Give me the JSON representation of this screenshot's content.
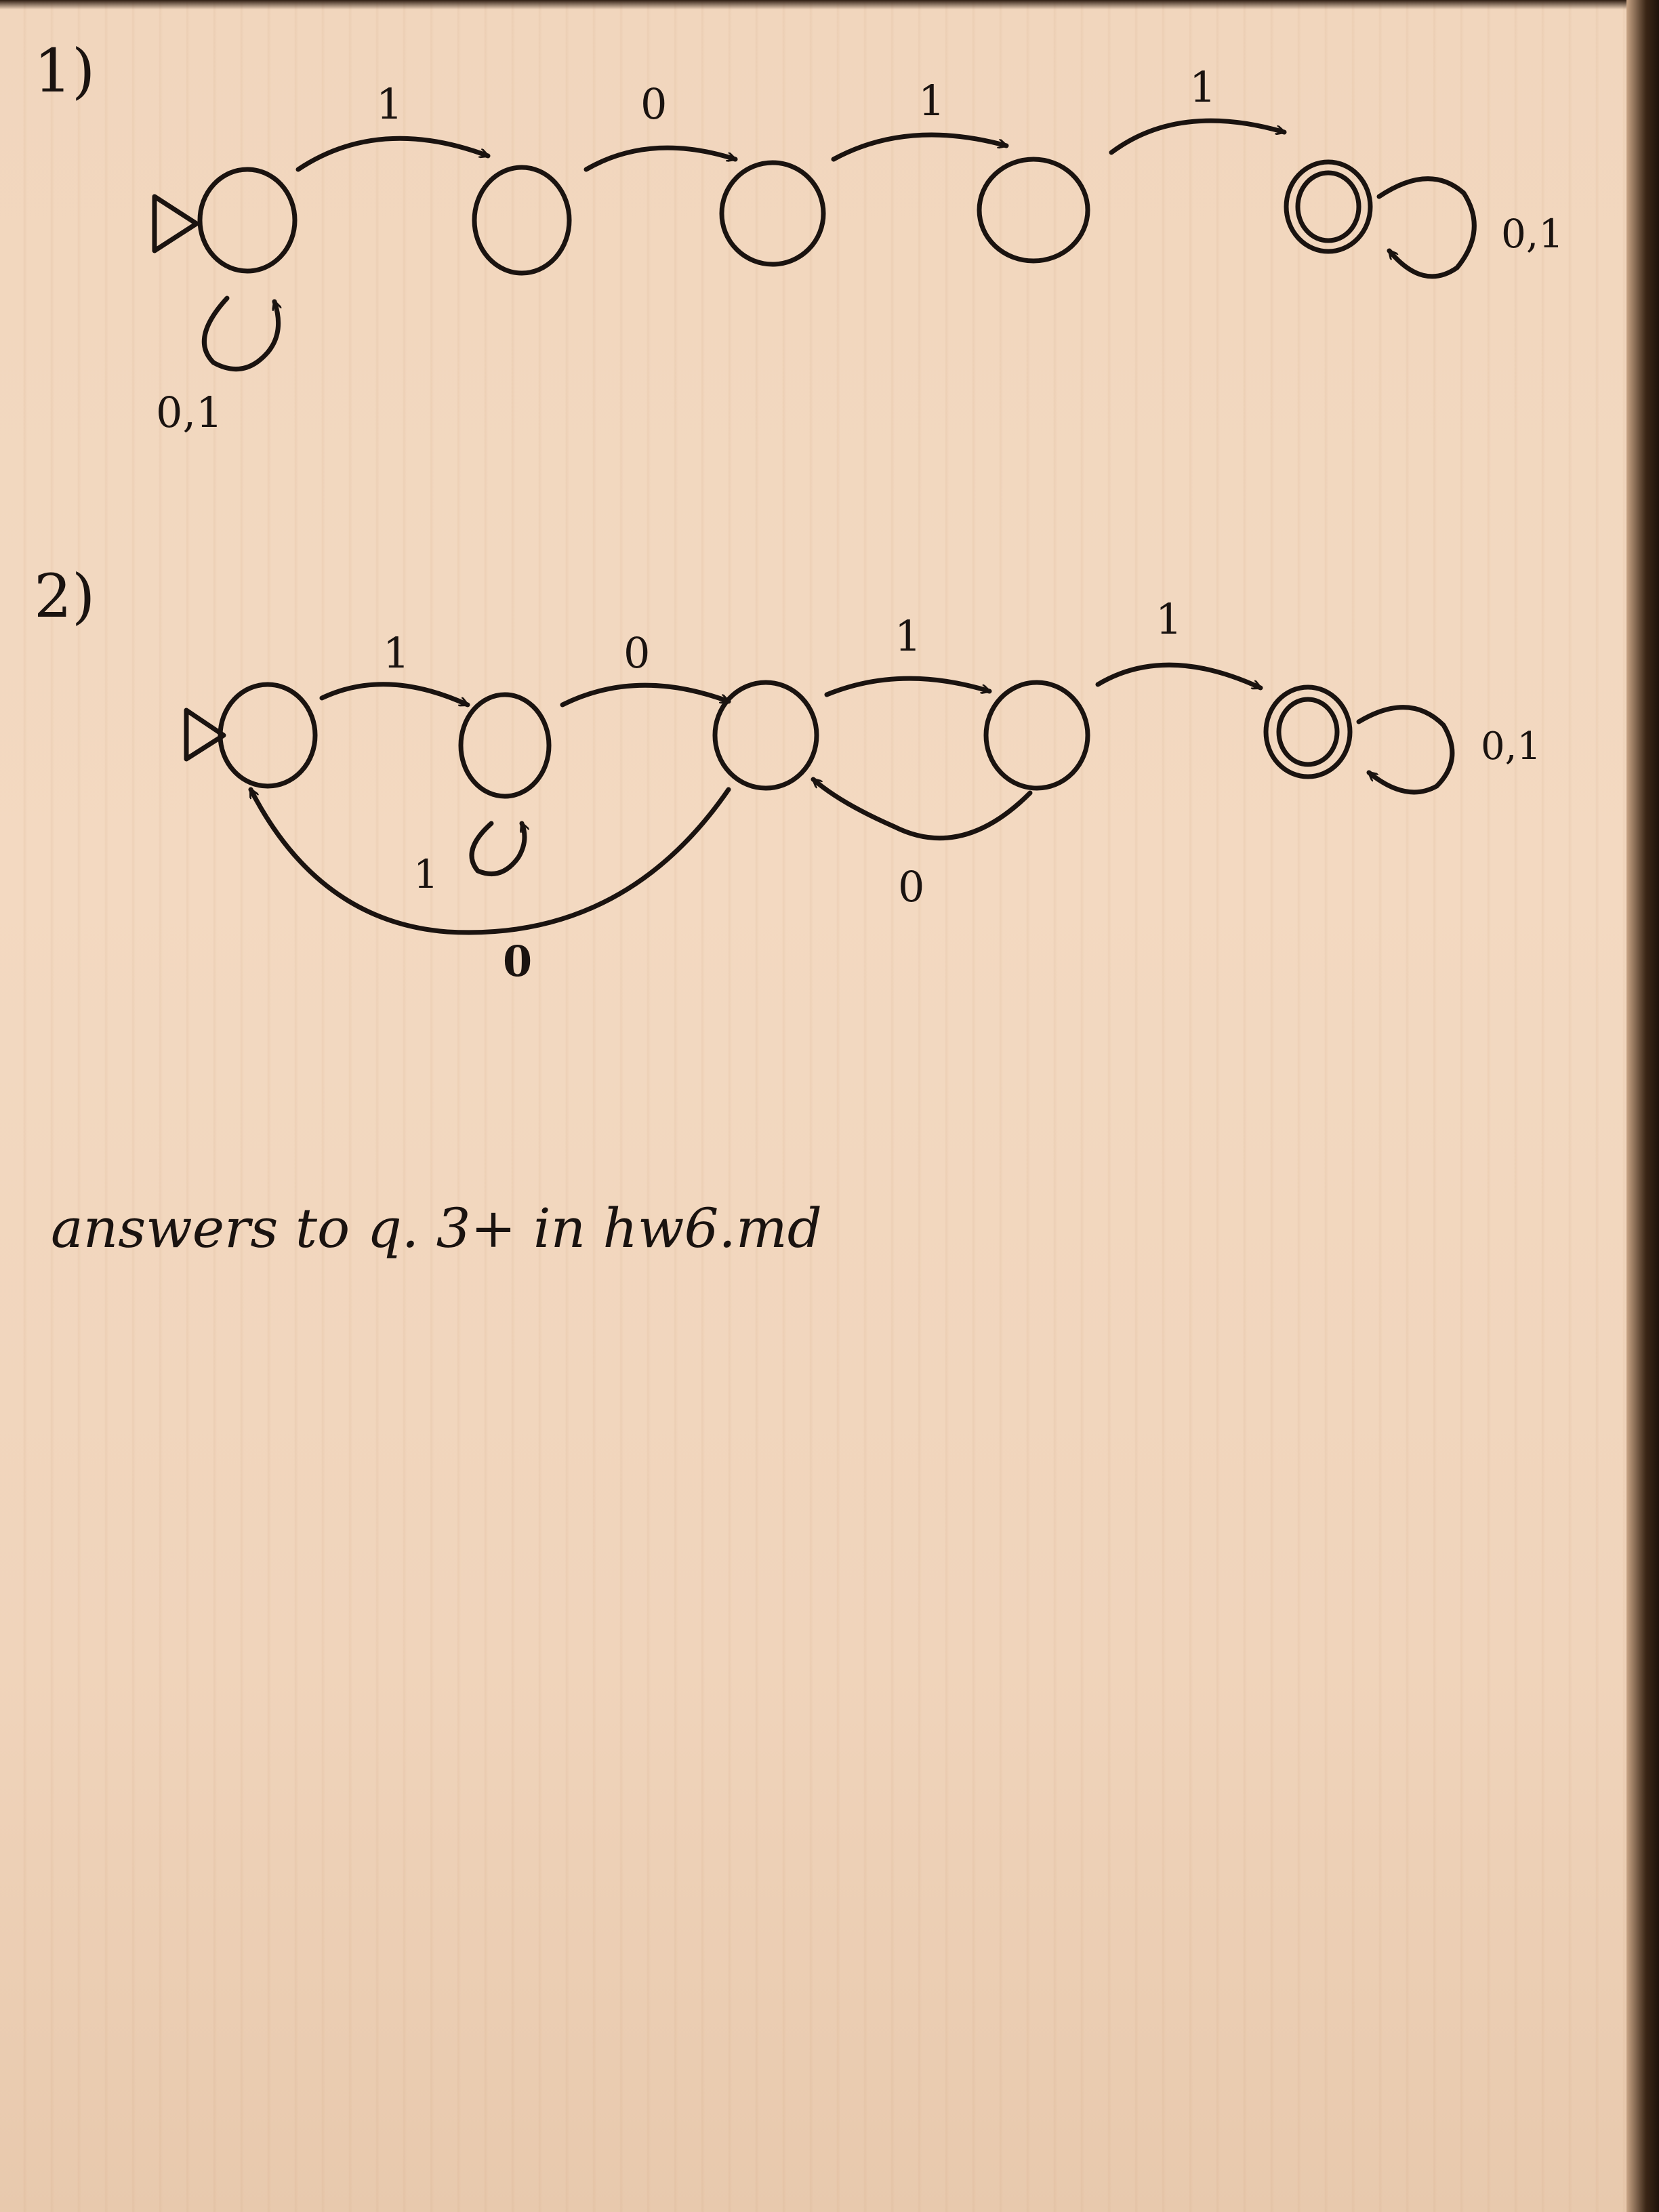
{
  "problems": [
    {
      "label": "1)",
      "edge_labels": [
        "1",
        "0",
        "1",
        "1"
      ],
      "start_loop_label": "0,1",
      "final_loop_label": "0,1"
    },
    {
      "label": "2)",
      "edge_labels": [
        "1",
        "0",
        "1",
        "1"
      ],
      "q1_loop_label": "1",
      "back_q3_q2_label": "0",
      "back_q2_q0_label": "0",
      "final_loop_label": "0,1"
    }
  ],
  "footer_note": "answers to q. 3+ in hw6.md",
  "colors": {
    "ink": "#1a1310",
    "paper": "#f2d8bf"
  }
}
